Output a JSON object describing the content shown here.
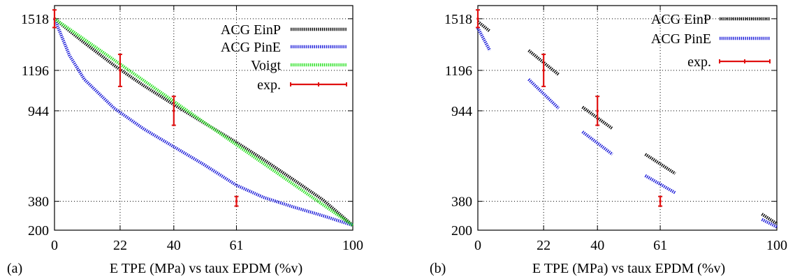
{
  "chart_data": [
    {
      "type": "line",
      "panel_label": "(a)",
      "xlabel": "E TPE (MPa) vs taux EPDM (%v)",
      "ylabel": "",
      "xticks": [
        0,
        22,
        40,
        61,
        100
      ],
      "yticks": [
        200,
        380,
        944,
        1196,
        1518
      ],
      "xlim": [
        0,
        100
      ],
      "ylim": [
        200,
        1600
      ],
      "grid": "dotted lines at tick positions",
      "legend_position": "top-right",
      "series": [
        {
          "name": "ACG EinP",
          "style": "dotted",
          "color": "#000000",
          "x": [
            0,
            10,
            20,
            30,
            40,
            50,
            61,
            70,
            80,
            90,
            100
          ],
          "y": [
            1518,
            1368,
            1227,
            1100,
            983,
            870,
            747,
            641,
            516,
            389,
            230
          ]
        },
        {
          "name": "ACG PinE",
          "style": "dotted",
          "color": "#1a1ad9",
          "x": [
            0,
            5,
            10,
            20,
            30,
            40,
            50,
            61,
            70,
            80,
            90,
            100
          ],
          "y": [
            1518,
            1290,
            1140,
            960,
            830,
            720,
            610,
            480,
            405,
            345,
            290,
            230
          ]
        },
        {
          "name": "Voigt",
          "style": "dotted",
          "color": "#22e01a",
          "x": [
            0,
            100
          ],
          "y": [
            1518,
            230
          ]
        },
        {
          "name": "exp.",
          "style": "errorbar",
          "color": "#e01010",
          "x": [
            0,
            22,
            40,
            61
          ],
          "y": [
            1518,
            1196,
            944,
            380
          ],
          "yerr": [
            55,
            100,
            90,
            30
          ]
        }
      ]
    },
    {
      "type": "line",
      "panel_label": "(b)",
      "xlabel": "E TPE (MPa) vs taux EPDM (%v)",
      "ylabel": "",
      "xticks": [
        0,
        22,
        40,
        61,
        100
      ],
      "yticks": [
        200,
        380,
        944,
        1196,
        1518
      ],
      "xlim": [
        0,
        100
      ],
      "ylim": [
        200,
        1600
      ],
      "grid": "dotted lines at tick positions",
      "legend_position": "top-right",
      "series": [
        {
          "name": "ACG EinP",
          "style": "dotted-segments",
          "color": "#000000",
          "segments": [
            {
              "x": [
                0,
                4
              ],
              "y": [
                1500,
                1440
              ]
            },
            {
              "x": [
                17,
                27
              ],
              "y": [
                1320,
                1170
              ]
            },
            {
              "x": [
                35,
                45
              ],
              "y": [
                967,
                833
              ]
            },
            {
              "x": [
                56,
                66
              ],
              "y": [
                673,
                553
              ]
            },
            {
              "x": [
                95,
                100
              ],
              "y": [
                300,
                240
              ]
            }
          ]
        },
        {
          "name": "ACG PinE",
          "style": "dotted-segments",
          "color": "#1a1ad9",
          "segments": [
            {
              "x": [
                0,
                4
              ],
              "y": [
                1460,
                1320
              ]
            },
            {
              "x": [
                17,
                27
              ],
              "y": [
                1140,
                960
              ]
            },
            {
              "x": [
                35,
                45
              ],
              "y": [
                813,
                673
              ]
            },
            {
              "x": [
                56,
                66
              ],
              "y": [
                540,
                433
              ]
            },
            {
              "x": [
                95,
                100
              ],
              "y": [
                267,
                220
              ]
            }
          ]
        },
        {
          "name": "exp.",
          "style": "errorbar",
          "color": "#e01010",
          "x": [
            0,
            22,
            40,
            61
          ],
          "y": [
            1518,
            1196,
            944,
            380
          ],
          "yerr": [
            55,
            100,
            90,
            30
          ]
        }
      ]
    }
  ]
}
